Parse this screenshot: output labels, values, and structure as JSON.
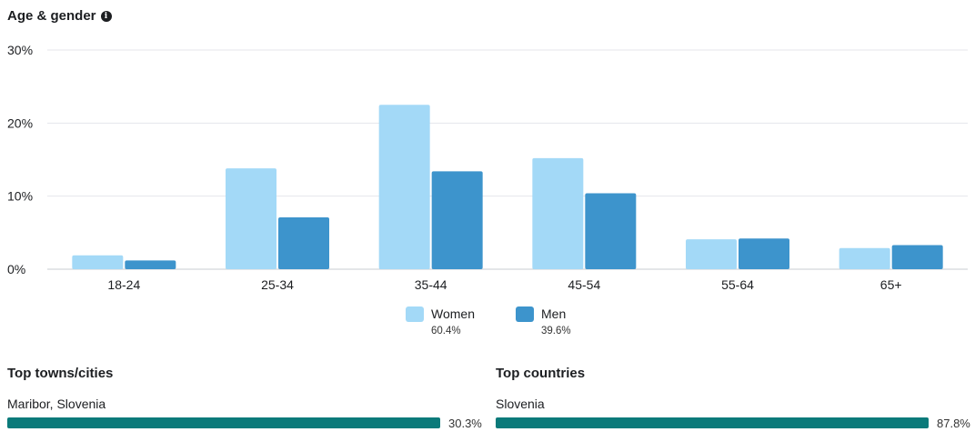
{
  "header": {
    "title": "Age & gender",
    "info_icon": "info-icon"
  },
  "chart_data": {
    "type": "bar",
    "categories": [
      "18-24",
      "25-34",
      "35-44",
      "45-54",
      "55-64",
      "65+"
    ],
    "series": [
      {
        "name": "Women",
        "color": "#a3d9f7",
        "values": [
          1.9,
          13.8,
          22.5,
          15.2,
          4.1,
          2.9
        ]
      },
      {
        "name": "Men",
        "color": "#3d94cc",
        "values": [
          1.2,
          7.1,
          13.4,
          10.4,
          4.2,
          3.3
        ]
      }
    ],
    "yticks": [
      "0%",
      "10%",
      "20%",
      "30%"
    ],
    "ylim": [
      0,
      30
    ],
    "grid": true,
    "legend_position": "bottom-center"
  },
  "legend": {
    "women": {
      "label": "Women",
      "pct": "60.4%",
      "color": "#a3d9f7"
    },
    "men": {
      "label": "Men",
      "pct": "39.6%",
      "color": "#3d94cc"
    }
  },
  "top_cities": {
    "title": "Top towns/cities",
    "items": [
      {
        "label": "Maribor, Slovenia",
        "value": "30.3%",
        "fraction": 0.303
      }
    ]
  },
  "top_countries": {
    "title": "Top countries",
    "items": [
      {
        "label": "Slovenia",
        "value": "87.8%",
        "fraction": 0.878
      }
    ]
  },
  "bar_color": "#0b7a7a"
}
